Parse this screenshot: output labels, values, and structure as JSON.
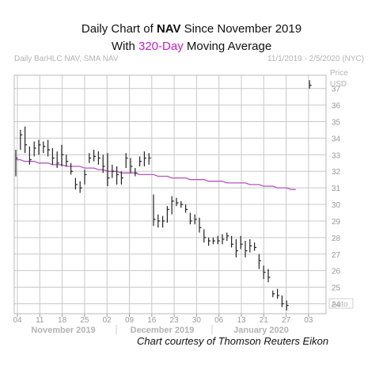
{
  "title": {
    "line1_pre": "Daily Chart of ",
    "line1_bold": "NAV",
    "line1_post": " Since November 2019",
    "line2_pre": "With ",
    "line2_highlight": "320-Day",
    "line2_post": " Moving Average"
  },
  "header": {
    "left": "Daily BarHLC NAV, SMA NAV",
    "right": "11/1/2019 - 2/5/2020 (NYC)"
  },
  "axis": {
    "price_label": "Price",
    "usd_label": "USD",
    "auto_label": "Auto"
  },
  "courtesy": "Chart courtesy of Thomson Reuters Eikon",
  "colors": {
    "sma": "#b455b8",
    "bars": "#222222",
    "grid": "#c8c8c8",
    "highlight": "#c21fc2"
  },
  "chart_data": {
    "type": "bar",
    "style": "HLC",
    "ylim": [
      23.4,
      37.8
    ],
    "y_ticks": [
      24,
      25,
      26,
      27,
      28,
      29,
      30,
      31,
      32,
      33,
      34,
      35,
      36,
      37
    ],
    "grid": true,
    "x_ticks": [
      "04",
      "11",
      "18",
      "25",
      "02",
      "09",
      "16",
      "23",
      "30",
      "06",
      "13",
      "21",
      "27",
      "03"
    ],
    "month_labels": [
      "November 2019",
      "December 2019",
      "January 2020"
    ],
    "dates": [
      "11/1",
      "11/4",
      "11/5",
      "11/6",
      "11/7",
      "11/8",
      "11/11",
      "11/12",
      "11/13",
      "11/14",
      "11/15",
      "11/18",
      "11/19",
      "11/20",
      "11/21",
      "11/22",
      "11/25",
      "11/26",
      "11/27",
      "11/29",
      "12/2",
      "12/3",
      "12/4",
      "12/5",
      "12/6",
      "12/9",
      "12/10",
      "12/11",
      "12/12",
      "12/13",
      "12/16",
      "12/17",
      "12/18",
      "12/19",
      "12/20",
      "12/23",
      "12/24",
      "12/26",
      "12/27",
      "12/30",
      "12/31",
      "1/2",
      "1/3",
      "1/6",
      "1/7",
      "1/8",
      "1/9",
      "1/10",
      "1/13",
      "1/14",
      "1/15",
      "1/16",
      "1/17",
      "1/21",
      "1/22",
      "1/23",
      "1/24",
      "1/27",
      "1/28",
      "1/29",
      "1/30",
      "1/31",
      "2/3",
      "2/4",
      "2/5"
    ],
    "series": [
      {
        "name": "NAV",
        "high": [
          33.3,
          34.5,
          34.7,
          33.5,
          33.8,
          33.9,
          33.8,
          33.9,
          33.4,
          33.2,
          33.6,
          33.0,
          32.5,
          31.6,
          31.4,
          32.1,
          33.1,
          33.3,
          33.2,
          33.0,
          33.1,
          32.4,
          32.3,
          32.0,
          33.1,
          32.8,
          32.2,
          32.9,
          33.2,
          33.1,
          30.6,
          29.4,
          29.3,
          29.9,
          30.5,
          30.4,
          30.2,
          30.0,
          29.5,
          29.4,
          29.2,
          28.5,
          28.0,
          28.0,
          28.1,
          28.2,
          28.3,
          28.1,
          27.9,
          28.1,
          27.8,
          27.9,
          27.7,
          27.0,
          26.3,
          26.1,
          24.8,
          24.9,
          24.5,
          24.2,
          null,
          null,
          null,
          null,
          37.5
        ],
        "low": [
          31.7,
          33.3,
          33.1,
          32.4,
          32.9,
          33.0,
          33.1,
          32.9,
          32.4,
          32.2,
          32.3,
          32.3,
          31.8,
          30.9,
          30.7,
          31.2,
          32.5,
          32.6,
          32.4,
          31.9,
          31.1,
          31.6,
          31.2,
          31.2,
          32.2,
          31.9,
          31.7,
          32.3,
          32.3,
          32.4,
          28.7,
          28.6,
          28.6,
          28.9,
          29.4,
          29.9,
          29.8,
          29.5,
          28.8,
          28.8,
          28.3,
          27.7,
          27.5,
          27.6,
          27.6,
          27.6,
          27.8,
          27.4,
          26.8,
          27.3,
          26.8,
          27.1,
          27.2,
          26.1,
          25.5,
          25.3,
          24.4,
          24.3,
          23.8,
          23.6,
          null,
          null,
          null,
          null,
          37.0
        ],
        "close": [
          32.8,
          34.2,
          33.6,
          32.7,
          33.4,
          33.6,
          33.5,
          33.3,
          32.8,
          32.5,
          33.0,
          32.6,
          32.0,
          31.2,
          31.0,
          31.8,
          32.8,
          32.9,
          32.8,
          32.3,
          31.6,
          32.0,
          31.8,
          31.6,
          32.8,
          32.3,
          31.9,
          32.6,
          32.8,
          32.8,
          29.1,
          29.0,
          29.0,
          29.7,
          30.2,
          30.1,
          30.0,
          29.7,
          29.0,
          29.1,
          28.6,
          28.0,
          27.8,
          27.8,
          27.8,
          27.9,
          28.1,
          27.6,
          27.2,
          27.6,
          27.2,
          27.5,
          27.4,
          26.6,
          25.9,
          25.6,
          24.6,
          24.5,
          24.0,
          23.9,
          null,
          null,
          null,
          null,
          37.2
        ]
      },
      {
        "name": "SMA",
        "values": [
          32.7,
          32.7,
          32.6,
          32.6,
          32.6,
          32.5,
          32.5,
          32.5,
          32.4,
          32.4,
          32.4,
          32.3,
          32.3,
          32.3,
          32.3,
          32.2,
          32.2,
          32.2,
          32.1,
          32.1,
          32.0,
          32.0,
          32.0,
          31.9,
          31.9,
          31.9,
          31.9,
          31.8,
          31.8,
          31.8,
          31.8,
          31.7,
          31.7,
          31.7,
          31.6,
          31.6,
          31.6,
          31.6,
          31.5,
          31.5,
          31.5,
          31.5,
          31.4,
          31.4,
          31.4,
          31.4,
          31.3,
          31.3,
          31.3,
          31.3,
          31.3,
          31.2,
          31.2,
          31.2,
          31.1,
          31.1,
          31.1,
          31.0,
          31.0,
          31.0,
          30.9,
          30.9,
          null,
          null,
          null
        ]
      }
    ]
  }
}
